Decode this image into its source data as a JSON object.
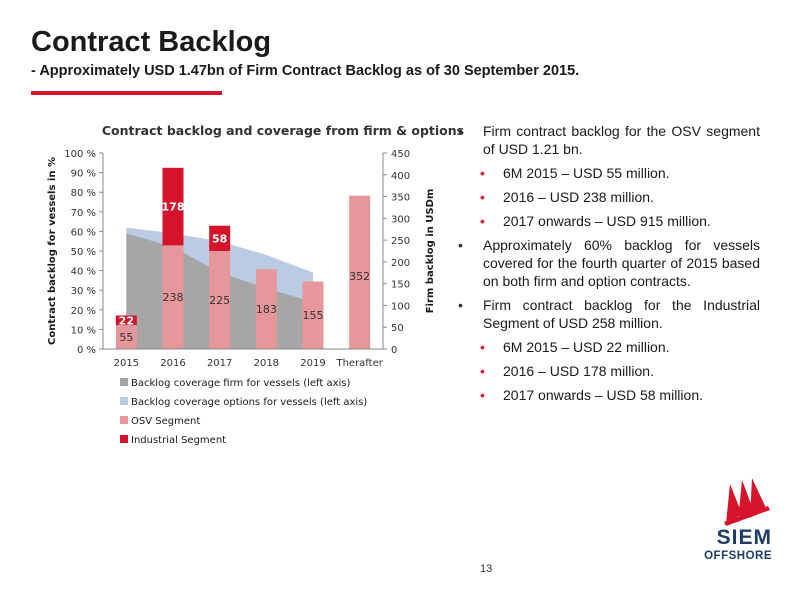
{
  "slide": {
    "title": "Contract Backlog",
    "subtitle": "- Approximately USD 1.47bn of Firm Contract Backlog as of 30 September 2015.",
    "page_number": "13"
  },
  "logo": {
    "line1": "SIEM",
    "line2": "OFFSHORE"
  },
  "bullets": [
    {
      "level": 1,
      "text": "Firm contract backlog for the OSV segment of USD 1.21 bn."
    },
    {
      "level": 2,
      "text": "6M 2015 – USD 55 million."
    },
    {
      "level": 2,
      "text": "2016 – USD 238 million."
    },
    {
      "level": 2,
      "text": "2017 onwards – USD 915 million."
    },
    {
      "level": 1,
      "text": "Approximately 60% backlog for vessels covered for the fourth quarter of 2015 based on both firm and option contracts."
    },
    {
      "level": 1,
      "text": "Firm contract backlog for the Industrial Segment of USD 258 million."
    },
    {
      "level": 2,
      "text": "6M 2015 – USD 22 million."
    },
    {
      "level": 2,
      "text": "2016 – USD 178 million."
    },
    {
      "level": 2,
      "text": "2017 onwards – USD 58 million."
    }
  ],
  "colors": {
    "firm_area": "#a6a6a6",
    "options_area": "#bccbe4",
    "osv_bar": "#e6979b",
    "industrial_bar": "#d5142c",
    "accent": "#d5142c"
  },
  "chart_data": {
    "type": "bar",
    "title": "Contract backlog and coverage from firm & options",
    "ylabel_left": "Contract backlog for vessels in %",
    "ylabel_right": "Firm backlog in USDm",
    "categories": [
      "2015",
      "2016",
      "2017",
      "2018",
      "2019",
      "Therafter"
    ],
    "left_axis": {
      "min": 0,
      "max": 100,
      "ticks": [
        "0 %",
        "10 %",
        "20 %",
        "30 %",
        "40 %",
        "50 %",
        "60 %",
        "70 %",
        "80 %",
        "90 %",
        "100 %"
      ]
    },
    "right_axis": {
      "min": 0,
      "max": 450,
      "ticks": [
        "0",
        "50",
        "100",
        "150",
        "200",
        "250",
        "300",
        "350",
        "400",
        "450"
      ]
    },
    "stacked_bars": [
      {
        "name": "OSV Segment",
        "values": [
          55,
          238,
          225,
          183,
          155,
          352
        ],
        "labels": [
          "55",
          "238",
          "225",
          "183",
          "155",
          "352"
        ]
      },
      {
        "name": "Industrial Segment",
        "values": [
          22,
          178,
          58,
          0,
          0,
          0
        ],
        "labels": [
          "22",
          "178",
          "58",
          "",
          "",
          ""
        ]
      }
    ],
    "areas": [
      {
        "name": "Backlog coverage firm for vessels (left axis)",
        "values": [
          59,
          52,
          39,
          31,
          24
        ]
      },
      {
        "name": "Backlog coverage options for vessels (left axis)",
        "values": [
          62,
          59,
          55,
          48,
          39
        ]
      }
    ],
    "legend": [
      {
        "name": "Backlog coverage firm for vessels (left axis)",
        "key": "firm_area"
      },
      {
        "name": "Backlog coverage options for vessels (left axis)",
        "key": "options_area"
      },
      {
        "name": "OSV Segment",
        "key": "osv_bar"
      },
      {
        "name": "Industrial Segment",
        "key": "industrial_bar"
      }
    ],
    "legend_position": "bottom",
    "grid": false
  }
}
